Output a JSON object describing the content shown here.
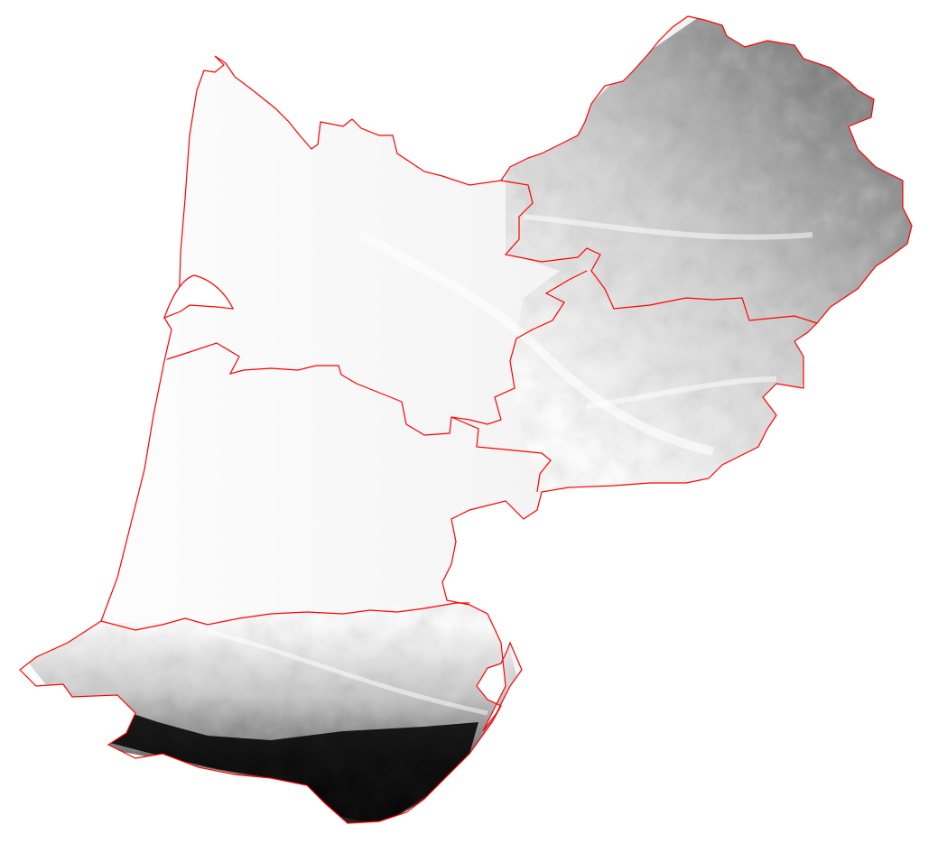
{
  "map": {
    "kind": "elevation-relief",
    "background_color": "#ffffff",
    "border_color": "#ff0000",
    "relief": {
      "lowland_color": "#ffffff",
      "upland_color": "#6a6a6a",
      "mountain_color": "#000000"
    }
  }
}
